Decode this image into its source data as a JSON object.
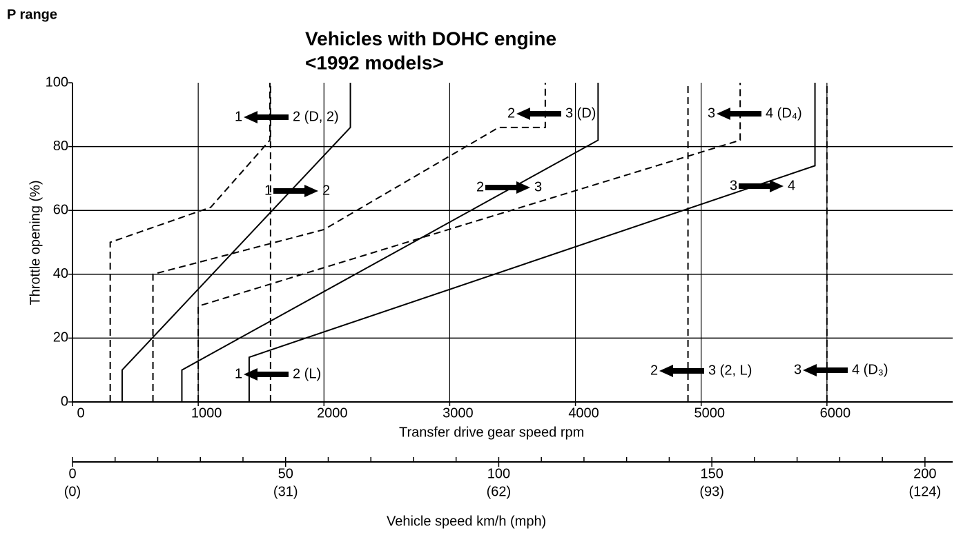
{
  "page_label": "P range",
  "chart_data": {
    "type": "line",
    "title": "Vehicles with DOHC engine",
    "subtitle": "<1992 models>",
    "xlabel": "Transfer drive gear speed  rpm",
    "ylabel": "Throttle opening (%)",
    "xlim": [
      0,
      7000
    ],
    "ylim": [
      0,
      100
    ],
    "xticks": [
      0,
      1000,
      2000,
      3000,
      4000,
      5000,
      6000
    ],
    "yticks": [
      0,
      20,
      40,
      60,
      80,
      100
    ],
    "grid": true,
    "color": "#000000",
    "series": [
      {
        "style": "dashed",
        "x": [
          300,
          300,
          1100,
          1570,
          1570
        ],
        "values": [
          0,
          50,
          61,
          82,
          100
        ]
      },
      {
        "style": "solid",
        "x": [
          395,
          395,
          2210,
          2210
        ],
        "values": [
          0,
          10,
          86,
          100
        ]
      },
      {
        "style": "dashed",
        "x": [
          640,
          640,
          2000,
          3390,
          3760,
          3760
        ],
        "values": [
          0,
          40,
          54,
          86,
          86,
          100
        ]
      },
      {
        "style": "solid",
        "x": [
          870,
          870,
          4180,
          4180
        ],
        "values": [
          0,
          10,
          82,
          100
        ]
      },
      {
        "style": "dashed",
        "x": [
          1000,
          1000,
          5310,
          5310
        ],
        "values": [
          0,
          30,
          82,
          100
        ]
      },
      {
        "style": "solid",
        "x": [
          1405,
          1405,
          5905,
          5905
        ],
        "values": [
          0,
          14,
          74,
          100
        ]
      },
      {
        "style": "dashed",
        "x": [
          1575,
          1575
        ],
        "values": [
          0,
          100
        ]
      },
      {
        "style": "dashed",
        "x": [
          4895,
          4895
        ],
        "values": [
          0,
          100
        ]
      },
      {
        "style": "dashed",
        "x": [
          6000,
          6000
        ],
        "values": [
          0,
          100
        ]
      }
    ],
    "annotations": [
      {
        "from": "1",
        "to": "2 (D, 2)",
        "arrow": "left"
      },
      {
        "from": "1",
        "to": "2",
        "arrow": "right"
      },
      {
        "from": "2",
        "to": "3 (D)",
        "arrow": "left"
      },
      {
        "from": "2",
        "to": "3",
        "arrow": "right"
      },
      {
        "from": "3",
        "to": "4 (D₄)",
        "arrow": "left"
      },
      {
        "from": "3",
        "to": "4",
        "arrow": "right"
      },
      {
        "from": "1",
        "to": "2 (L)",
        "arrow": "left"
      },
      {
        "from": "2",
        "to": "3 (2, L)",
        "arrow": "left"
      },
      {
        "from": "3",
        "to": "4 (D₃)",
        "arrow": "left"
      }
    ],
    "x2label": "Vehicle speed  km/h (mph)",
    "x2lim": [
      0,
      206.5
    ],
    "x2ticks": [
      0,
      50,
      100,
      150,
      200
    ],
    "x2tick_mph_labels": [
      "(0)",
      "(31)",
      "(62)",
      "(93)",
      "(124)"
    ],
    "x2minor_ticks": [
      10,
      20,
      30,
      40,
      60,
      70,
      80,
      90,
      110,
      120,
      130,
      140,
      160,
      170,
      180,
      190
    ]
  }
}
